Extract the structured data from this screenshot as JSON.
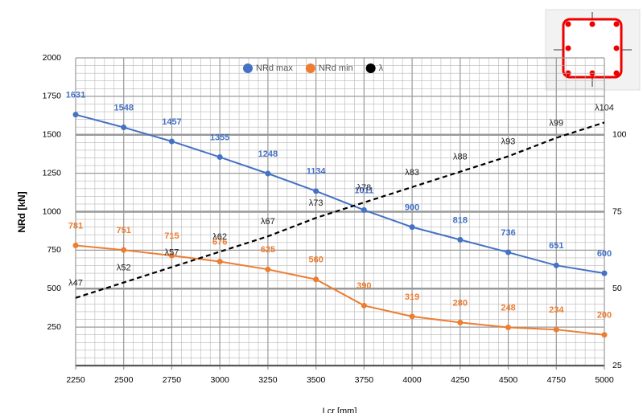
{
  "chart_data": {
    "type": "line",
    "x_label": "Lcr [mm]",
    "y_label": "NRd [kN]",
    "x": [
      2250,
      2500,
      2750,
      3000,
      3250,
      3500,
      3750,
      4000,
      4250,
      4500,
      4750,
      5000
    ],
    "xlim": [
      2250,
      5000
    ],
    "xticks": [
      2250,
      2500,
      2750,
      3000,
      3250,
      3500,
      3750,
      4000,
      4250,
      4500,
      4750,
      5000
    ],
    "ylim": [
      0,
      2000
    ],
    "yticks": [
      250,
      500,
      750,
      1000,
      1250,
      1500,
      1750,
      2000
    ],
    "y2lim": [
      25,
      125
    ],
    "y2ticks": [
      25,
      50,
      75,
      100
    ],
    "grid": true,
    "series": [
      {
        "name": "NRd max",
        "color": "#4472c4",
        "values": [
          1631,
          1548,
          1457,
          1355,
          1248,
          1134,
          1011,
          900,
          818,
          736,
          651,
          600
        ]
      },
      {
        "name": "NRd min",
        "color": "#ed7d31",
        "values": [
          781,
          751,
          715,
          676,
          625,
          560,
          390,
          319,
          280,
          248,
          234,
          200
        ]
      },
      {
        "name": "λ",
        "color": "#000000",
        "axis": "y2",
        "dashed": true,
        "values": [
          47,
          52,
          57,
          62,
          67,
          73,
          78,
          83,
          88,
          93,
          99,
          104
        ],
        "value_labels": [
          "λ47",
          "λ52",
          "λ57",
          "λ62",
          "λ67",
          "λ73",
          "λ78",
          "λ83",
          "λ88",
          "λ93",
          "λ99",
          "λ104"
        ]
      }
    ]
  }
}
